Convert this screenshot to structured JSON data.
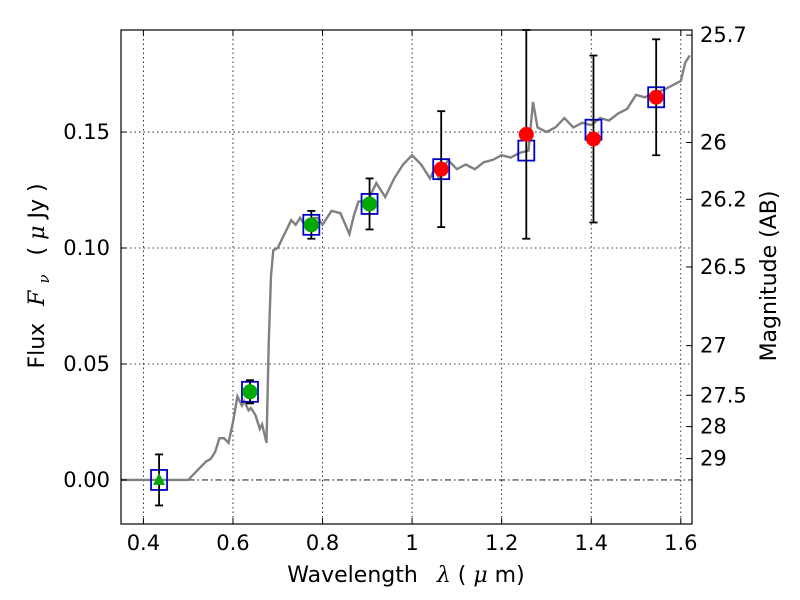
{
  "chart_data": {
    "type": "scatter",
    "title": "",
    "xlabel": {
      "prefix": "Wavelength",
      "symbol": "λ",
      "unit_open": " (",
      "unit_mu": "μ",
      "unit_rest": "m)"
    },
    "ylabel": {
      "prefix": "Flux",
      "symbol": "F",
      "symbol_sub": "ν",
      "unit_open": "( ",
      "unit_mu": "μ",
      "unit_rest": "Jy )"
    },
    "y2label": "Magnitude (AB)",
    "xlim": [
      0.35,
      1.625
    ],
    "ylim": [
      -0.019,
      0.194
    ],
    "x_ticks": [
      {
        "value": 0.4,
        "label": "0.4"
      },
      {
        "value": 0.6,
        "label": "0.6"
      },
      {
        "value": 0.8,
        "label": "0.8"
      },
      {
        "value": 1.0,
        "label": "1"
      },
      {
        "value": 1.2,
        "label": "1.2"
      },
      {
        "value": 1.4,
        "label": "1.4"
      },
      {
        "value": 1.6,
        "label": "1.6"
      }
    ],
    "y_ticks": [
      {
        "value": 0.0,
        "label": "0.00"
      },
      {
        "value": 0.05,
        "label": "0.05"
      },
      {
        "value": 0.1,
        "label": "0.10"
      },
      {
        "value": 0.15,
        "label": "0.15"
      }
    ],
    "y2_ticks": [
      {
        "label": "25.7",
        "flux": 0.1918
      },
      {
        "label": "26",
        "flux": 0.1455
      },
      {
        "label": "26.2",
        "flux": 0.121
      },
      {
        "label": "26.5",
        "flux": 0.0918
      },
      {
        "label": "27",
        "flux": 0.0579
      },
      {
        "label": "27.5",
        "flux": 0.0365
      },
      {
        "label": "28",
        "flux": 0.023
      },
      {
        "label": "29",
        "flux": 0.0092
      }
    ],
    "grid": true,
    "zero_line": true,
    "model_color": "#808080",
    "box_color": "#0000cc",
    "errorbar_color": "#000000",
    "model_spectrum": {
      "x": [
        0.35,
        0.4,
        0.45,
        0.5,
        0.52,
        0.54,
        0.55,
        0.56,
        0.57,
        0.58,
        0.59,
        0.6,
        0.61,
        0.62,
        0.625,
        0.635,
        0.64,
        0.65,
        0.66,
        0.665,
        0.67,
        0.675,
        0.68,
        0.685,
        0.69,
        0.7,
        0.71,
        0.72,
        0.73,
        0.74,
        0.75,
        0.76,
        0.77,
        0.78,
        0.79,
        0.8,
        0.82,
        0.84,
        0.86,
        0.87,
        0.88,
        0.9,
        0.92,
        0.94,
        0.96,
        0.98,
        1.0,
        1.02,
        1.04,
        1.05,
        1.06,
        1.08,
        1.1,
        1.12,
        1.14,
        1.16,
        1.18,
        1.2,
        1.22,
        1.24,
        1.26,
        1.27,
        1.28,
        1.3,
        1.32,
        1.34,
        1.36,
        1.38,
        1.4,
        1.42,
        1.44,
        1.46,
        1.48,
        1.5,
        1.52,
        1.54,
        1.56,
        1.58,
        1.6,
        1.61,
        1.62
      ],
      "y": [
        0.0,
        0.0,
        0.0,
        0.0,
        0.004,
        0.008,
        0.009,
        0.012,
        0.018,
        0.018,
        0.016,
        0.025,
        0.036,
        0.032,
        0.034,
        0.03,
        0.031,
        0.028,
        0.022,
        0.024,
        0.02,
        0.016,
        0.06,
        0.088,
        0.099,
        0.1,
        0.104,
        0.108,
        0.112,
        0.11,
        0.113,
        0.11,
        0.112,
        0.113,
        0.113,
        0.11,
        0.116,
        0.115,
        0.106,
        0.114,
        0.12,
        0.12,
        0.128,
        0.122,
        0.13,
        0.136,
        0.14,
        0.136,
        0.13,
        0.134,
        0.13,
        0.138,
        0.134,
        0.136,
        0.134,
        0.137,
        0.138,
        0.14,
        0.139,
        0.141,
        0.142,
        0.163,
        0.152,
        0.15,
        0.152,
        0.156,
        0.152,
        0.154,
        0.153,
        0.156,
        0.155,
        0.158,
        0.16,
        0.166,
        0.165,
        0.167,
        0.168,
        0.17,
        0.172,
        0.18,
        0.183
      ]
    },
    "observations": [
      {
        "x": 0.435,
        "y": 0.0,
        "err": 0.011,
        "marker": "triangle",
        "color": "#00aa00",
        "model_band": 0.0
      },
      {
        "x": 0.638,
        "y": 0.038,
        "err": 0.005,
        "marker": "circle",
        "color": "#00aa00",
        "model_band": 0.038
      },
      {
        "x": 0.775,
        "y": 0.11,
        "err": 0.006,
        "marker": "circle",
        "color": "#00aa00",
        "model_band": 0.11
      },
      {
        "x": 0.905,
        "y": 0.119,
        "err": 0.011,
        "marker": "circle",
        "color": "#00aa00",
        "model_band": 0.119
      },
      {
        "x": 1.065,
        "y": 0.134,
        "err": 0.025,
        "marker": "circle",
        "color": "#ff0000",
        "model_band": 0.134
      },
      {
        "x": 1.255,
        "y": 0.149,
        "err": 0.045,
        "marker": "circle",
        "color": "#ff0000",
        "model_band": 0.142
      },
      {
        "x": 1.405,
        "y": 0.147,
        "err": 0.036,
        "marker": "circle",
        "color": "#ff0000",
        "model_band": 0.151
      },
      {
        "x": 1.545,
        "y": 0.165,
        "err": 0.025,
        "marker": "circle",
        "color": "#ff0000",
        "model_band": 0.165
      }
    ]
  }
}
